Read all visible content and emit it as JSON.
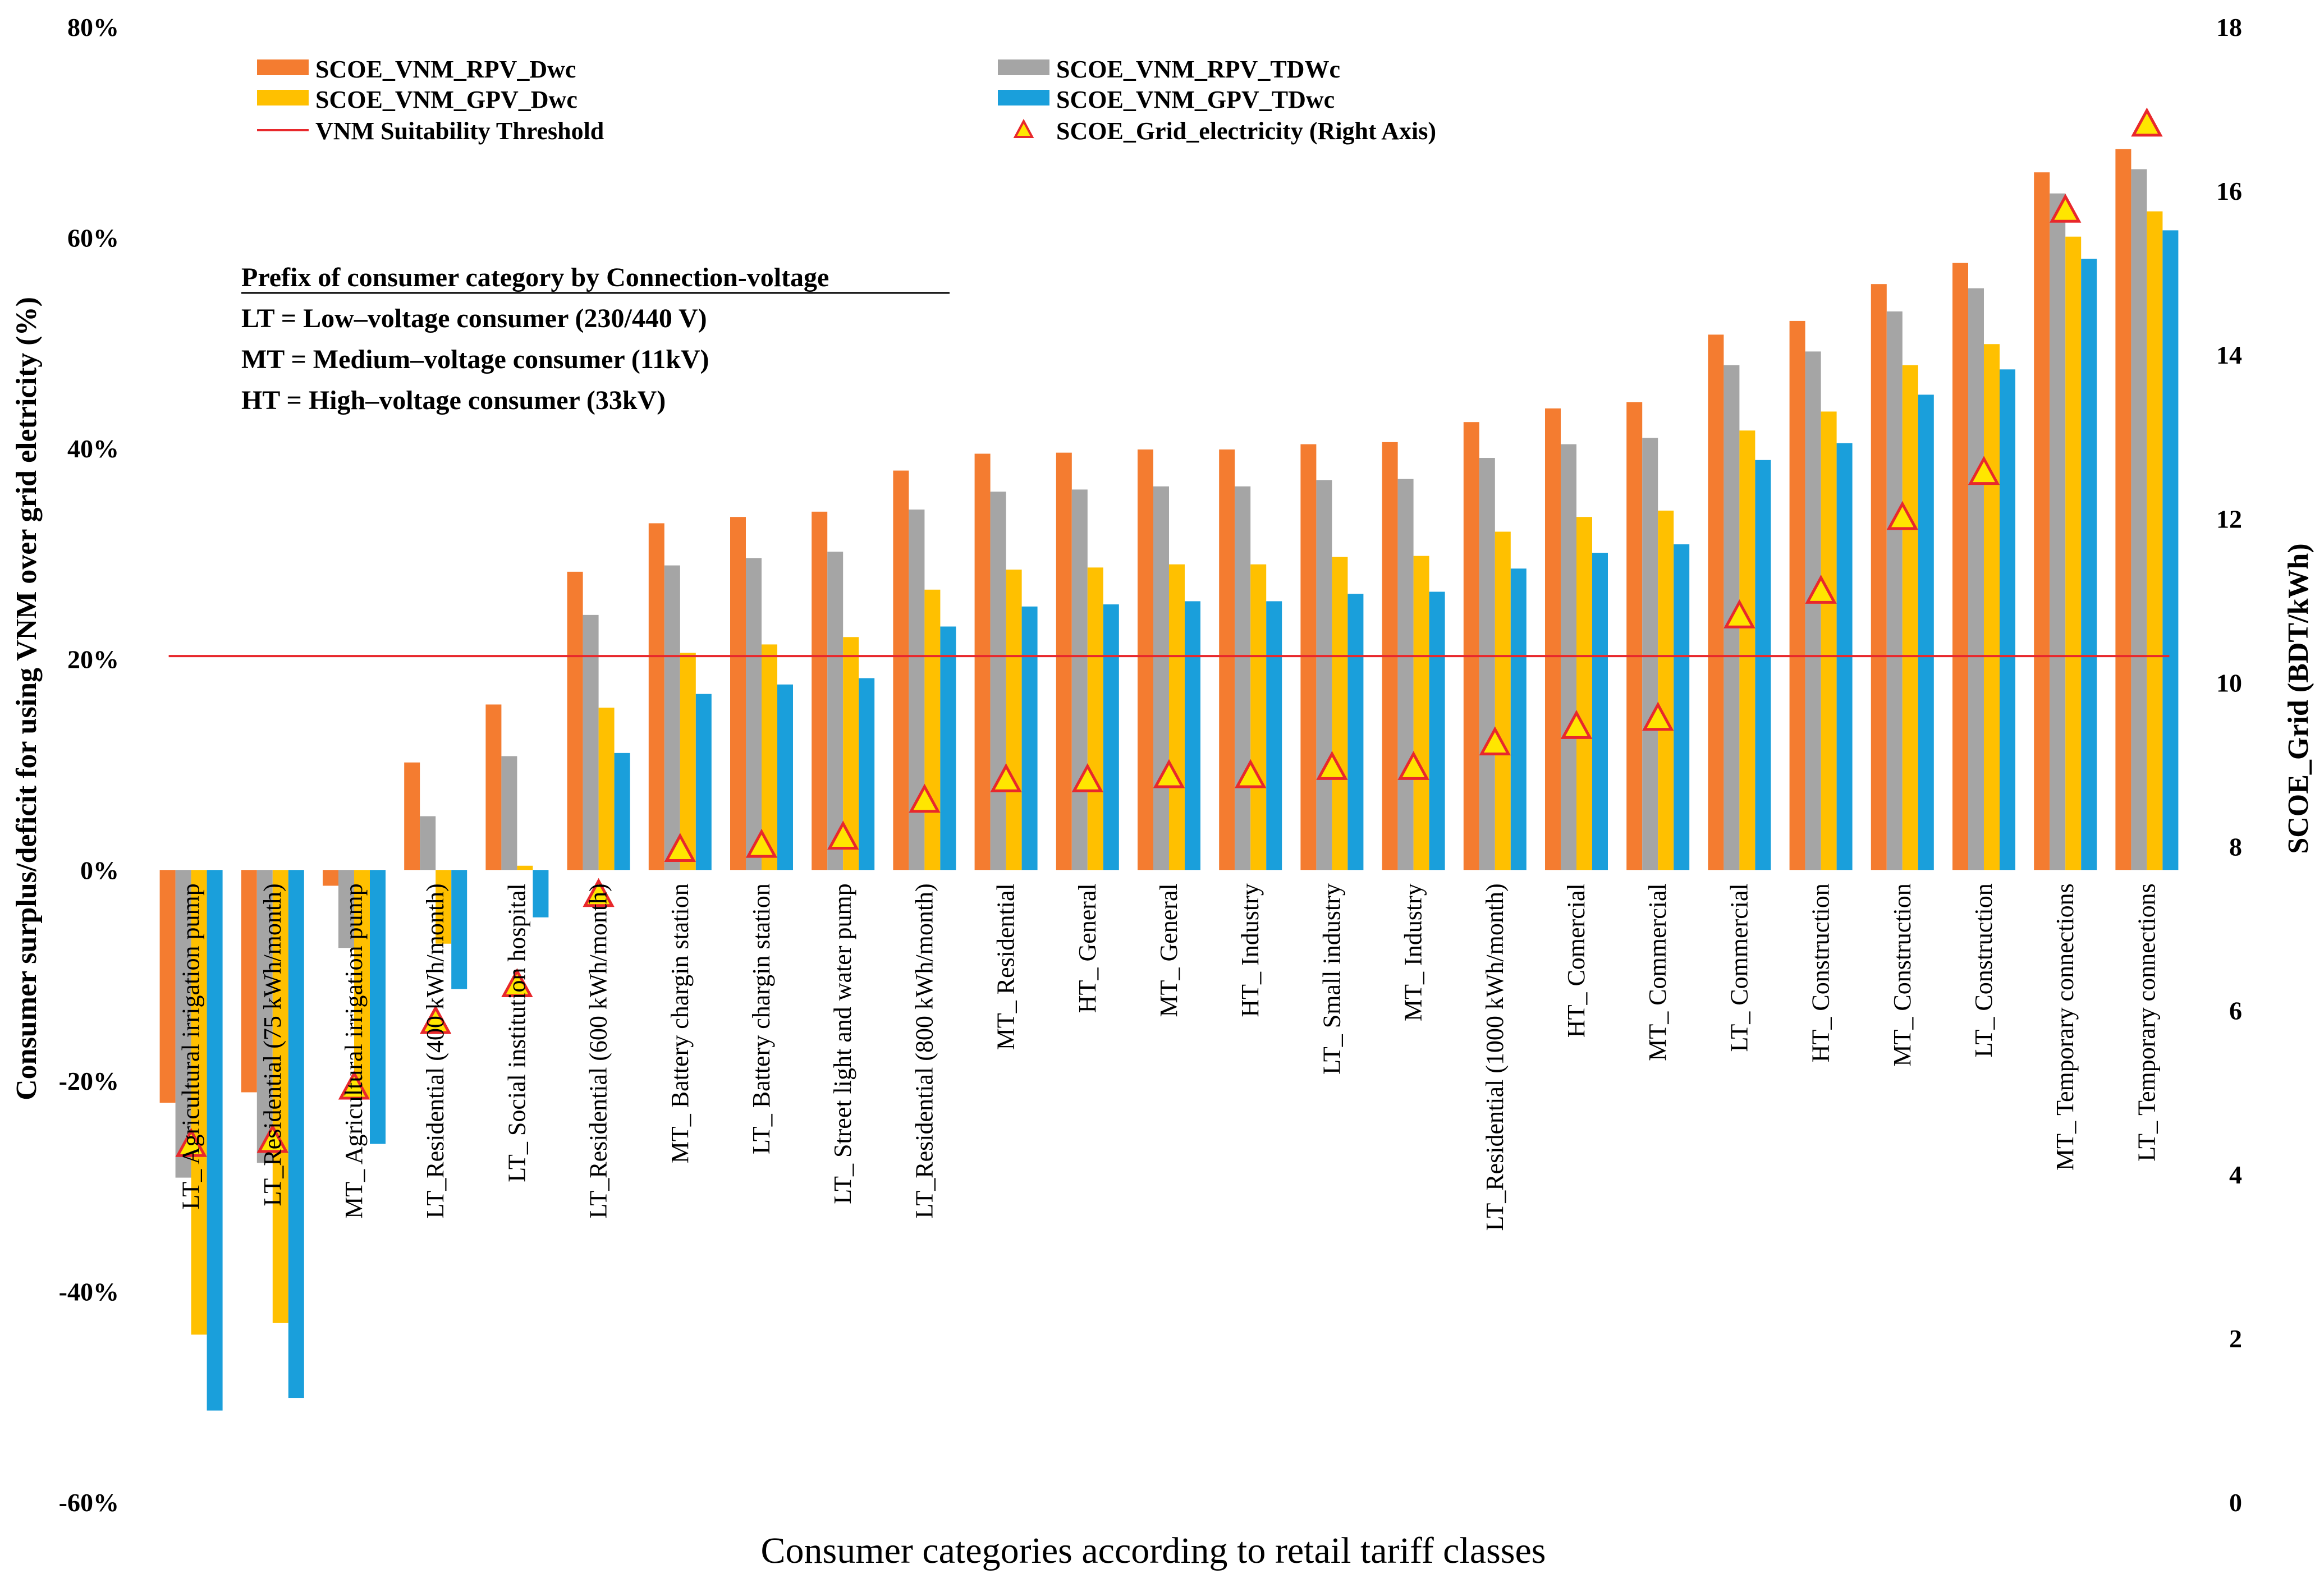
{
  "chart_data": {
    "type": "bar",
    "xlabel": "Consumer categories according to retail tariff classes",
    "ylabel": "Consumer surplus/deficit  for using VNM over grid eletricity  (%)",
    "y2label": "SCOE_Grid (BDT/kWh)",
    "ylim": [
      -60,
      80
    ],
    "y_ticks": [
      "80%",
      "60%",
      "40%",
      "20%",
      "0%",
      "-20%",
      "-40%",
      "-60%"
    ],
    "y_tick_values": [
      80,
      60,
      40,
      20,
      0,
      -20,
      -40,
      -60
    ],
    "y2lim": [
      0,
      18
    ],
    "y2_ticks": [
      "18",
      "16",
      "14",
      "12",
      "10",
      "8",
      "6",
      "4",
      "2",
      "0"
    ],
    "y2_tick_values": [
      18,
      16,
      14,
      12,
      10,
      8,
      6,
      4,
      2,
      0
    ],
    "categories": [
      "LT_ Agricultural irrigation pump",
      "LT_Residential (75 kWh/month)",
      "MT_ Agricultural irrigation pump",
      "LT_Residential (400 kWh/month)",
      "LT_ Social institution hospital",
      "LT_Residential (600 kWh/month)",
      "MT_ Battery chargin station",
      "LT_ Battery chargin station",
      "LT_ Street light and water pump",
      "LT_Residential (800 kWh/month)",
      "MT_ Residential",
      "HT_ General",
      "MT_ General",
      "HT_ Industry",
      "LT_ Small industry",
      "MT_ Industry",
      "LT_Residential (1000 kWh/month)",
      "HT_ Comercial",
      "MT_ Commercial",
      "LT_ Commercial",
      "HT_ Construction",
      "MT_ Construction",
      "LT_ Construction",
      "MT_ Temporary connections",
      "LT_ Temporary connections"
    ],
    "series": [
      {
        "name": "SCOE_VNM_RPV_Dwc",
        "color": "#F47C30",
        "values": [
          -22.1,
          -21.1,
          -1.5,
          10.2,
          15.7,
          28.3,
          32.9,
          33.5,
          34.0,
          37.9,
          39.5,
          39.6,
          39.9,
          39.9,
          40.4,
          40.6,
          42.5,
          43.8,
          44.4,
          50.8,
          52.1,
          55.6,
          57.6,
          66.2,
          68.4
        ]
      },
      {
        "name": "SCOE_VNM_RPV_TDWc",
        "color": "#A5A5A5",
        "values": [
          -29.2,
          -27.8,
          -7.4,
          5.1,
          10.8,
          24.2,
          28.9,
          29.6,
          30.2,
          34.2,
          35.9,
          36.1,
          36.4,
          36.4,
          37.0,
          37.1,
          39.1,
          40.4,
          41.0,
          47.9,
          49.2,
          53.0,
          55.2,
          64.2,
          66.5
        ]
      },
      {
        "name": "SCOE_VNM_GPV_Dwc",
        "color": "#FFC000",
        "values": [
          -44.1,
          -43.0,
          -21.7,
          -7.0,
          0.4,
          15.4,
          20.6,
          21.4,
          22.1,
          26.6,
          28.5,
          28.7,
          29.0,
          29.0,
          29.7,
          29.8,
          32.1,
          33.5,
          34.1,
          41.7,
          43.5,
          47.9,
          49.9,
          60.1,
          62.5
        ]
      },
      {
        "name": "SCOE_VNM_GPV_TDwc",
        "color": "#1A9FDB",
        "values": [
          -51.3,
          -50.1,
          -26.0,
          -11.3,
          -4.5,
          11.1,
          16.7,
          17.6,
          18.2,
          23.1,
          25.0,
          25.2,
          25.5,
          25.5,
          26.2,
          26.4,
          28.6,
          30.1,
          30.9,
          38.9,
          40.5,
          45.1,
          47.5,
          58.0,
          60.7
        ]
      }
    ],
    "threshold": {
      "name": "VNM Suitability Threshold",
      "value": 20.3,
      "color": "#E8282C"
    },
    "grid_scoe": {
      "name": "SCOE_Grid_electricity (Right Axis)",
      "axis": "right",
      "values": [
        4.35,
        4.4,
        5.05,
        5.85,
        6.3,
        7.4,
        7.95,
        8.0,
        8.1,
        8.55,
        8.8,
        8.8,
        8.85,
        8.85,
        8.95,
        8.95,
        9.25,
        9.45,
        9.55,
        10.8,
        11.1,
        12.0,
        12.55,
        15.75,
        16.8
      ]
    },
    "legend": [
      {
        "label": "SCOE_VNM_RPV_Dwc",
        "kind": "bar",
        "color": "#F47C30"
      },
      {
        "label": "SCOE_VNM_RPV_TDWc",
        "kind": "bar",
        "color": "#A5A5A5"
      },
      {
        "label": "SCOE_VNM_GPV_Dwc",
        "kind": "bar",
        "color": "#FFC000"
      },
      {
        "label": "SCOE_VNM_GPV_TDwc",
        "kind": "bar",
        "color": "#1A9FDB"
      },
      {
        "label": "VNM Suitability Threshold",
        "kind": "line",
        "color": "#E8282C"
      },
      {
        "label": "SCOE_Grid_electricity (Right Axis)",
        "kind": "marker",
        "color": "#FFE600"
      }
    ],
    "legend_position": "top-left",
    "annotation": {
      "title": "Prefix of consumer category by Connection-voltage",
      "lines": [
        "LT = Low–voltage consumer (230/440 V)",
        "MT = Medium–voltage consumer (11kV)",
        "HT = High–voltage consumer (33kV)"
      ]
    }
  }
}
